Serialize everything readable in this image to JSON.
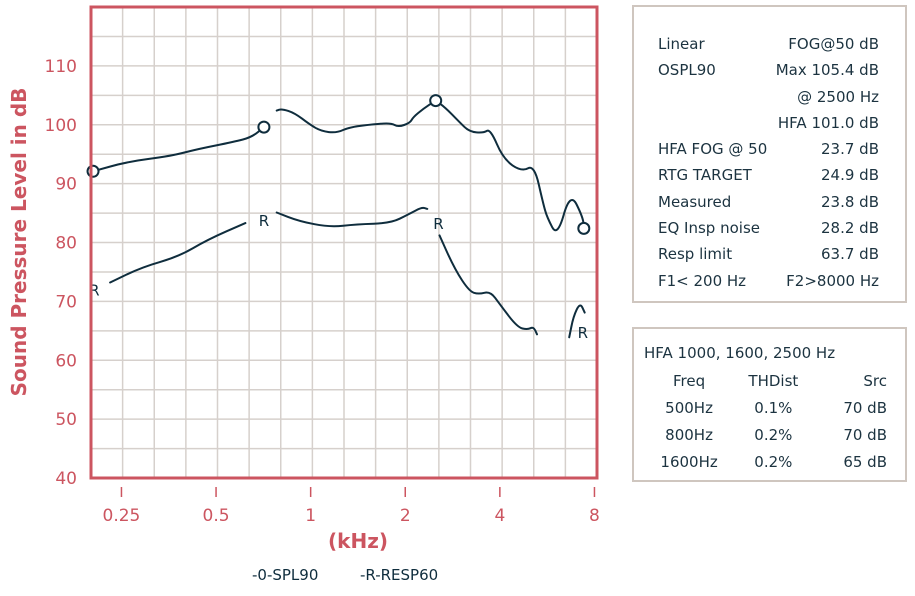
{
  "chart_data": {
    "type": "line",
    "title": "",
    "xlabel": "(kHz)",
    "ylabel": "Sound Pressure Level in dB",
    "x_scale": "log",
    "xlim": [
      0.2,
      8.1
    ],
    "ylim": [
      40,
      120
    ],
    "x_ticks": [
      {
        "value": 0.25,
        "label": "0.25"
      },
      {
        "value": 0.5,
        "label": "0.5"
      },
      {
        "value": 1,
        "label": "1"
      },
      {
        "value": 2,
        "label": "2"
      },
      {
        "value": 4,
        "label": "4"
      },
      {
        "value": 8,
        "label": "8"
      }
    ],
    "y_ticks": [
      40,
      50,
      60,
      70,
      80,
      90,
      100,
      110
    ],
    "grid": true,
    "legend_position": "bottom",
    "series": [
      {
        "name": "SPL90",
        "legend_label": "-0-SPL90",
        "marker": "O",
        "segments": [
          [
            [
              0.203,
              92.1
            ],
            [
              0.26,
              93.7
            ],
            [
              0.36,
              94.7
            ],
            [
              0.44,
              95.9
            ],
            [
              0.57,
              97.1
            ],
            [
              0.65,
              97.9
            ],
            [
              0.71,
              99.6
            ]
          ],
          [
            [
              0.78,
              102.4
            ],
            [
              0.81,
              102.7
            ],
            [
              0.89,
              102.0
            ],
            [
              0.99,
              100.1
            ],
            [
              1.08,
              98.9
            ],
            [
              1.21,
              98.6
            ],
            [
              1.33,
              99.6
            ],
            [
              1.6,
              100.1
            ],
            [
              1.8,
              100.3
            ],
            [
              1.9,
              99.6
            ],
            [
              2.07,
              100.3
            ],
            [
              2.12,
              101.3
            ],
            [
              2.28,
              102.7
            ],
            [
              2.5,
              104.1
            ],
            [
              2.67,
              103.0
            ],
            [
              2.97,
              100.5
            ],
            [
              3.2,
              98.8
            ],
            [
              3.55,
              98.6
            ],
            [
              3.73,
              99.3
            ],
            [
              4.1,
              94.2
            ],
            [
              4.7,
              92.0
            ],
            [
              5.15,
              93.2
            ],
            [
              5.5,
              86.5
            ],
            [
              5.65,
              84.3
            ],
            [
              6.1,
              80.9
            ],
            [
              6.7,
              88.6
            ],
            [
              7.35,
              84.3
            ],
            [
              7.4,
              82.4
            ]
          ]
        ],
        "marker_points": [
          [
            0.203,
            92.1
          ],
          [
            0.71,
            99.6
          ],
          [
            2.5,
            104.1
          ],
          [
            7.4,
            82.4
          ]
        ]
      },
      {
        "name": "RESP60",
        "legend_label": "-R-RESP60",
        "marker": "R",
        "segments": [
          [
            [
              0.23,
              73.2
            ],
            [
              0.29,
              75.8
            ],
            [
              0.38,
              77.6
            ],
            [
              0.47,
              80.5
            ],
            [
              0.62,
              83.3
            ]
          ],
          [
            [
              0.78,
              85.1
            ],
            [
              0.92,
              83.6
            ],
            [
              1.15,
              82.6
            ],
            [
              1.4,
              83.1
            ],
            [
              1.8,
              83.3
            ],
            [
              2.05,
              84.8
            ],
            [
              2.26,
              86.0
            ],
            [
              2.35,
              85.7
            ]
          ],
          [
            [
              2.57,
              81.2
            ],
            [
              2.88,
              75.4
            ],
            [
              3.2,
              71.7
            ],
            [
              3.42,
              71.2
            ],
            [
              3.73,
              71.7
            ],
            [
              4.0,
              69.5
            ],
            [
              4.55,
              65.6
            ],
            [
              4.9,
              65.2
            ],
            [
              5.12,
              65.7
            ],
            [
              5.25,
              64.4
            ]
          ],
          [
            [
              6.65,
              63.9
            ],
            [
              6.85,
              67.4
            ],
            [
              7.2,
              69.8
            ],
            [
              7.45,
              68.1
            ]
          ]
        ],
        "marker_points": [
          [
            0.205,
            72.0
          ],
          [
            0.71,
            83.8
          ],
          [
            2.55,
            83.3
          ],
          [
            7.35,
            64.8
          ]
        ]
      }
    ]
  },
  "axis": {
    "ylabel": "Sound Pressure Level in dB",
    "xlabel": "(kHz)",
    "y_tick_labels": [
      "40",
      "50",
      "60",
      "70",
      "80",
      "90",
      "100",
      "110"
    ],
    "x_tick_labels": [
      "0.25",
      "0.5",
      "1",
      "2",
      "4",
      "8"
    ]
  },
  "legend": {
    "spl90": "-0-SPL90",
    "resp60": "-R-RESP60"
  },
  "info_box": {
    "rows": [
      {
        "left": "Linear",
        "right": "FOG@50 dB"
      },
      {
        "left": "OSPL90",
        "right": "Max 105.4 dB"
      },
      {
        "left": "",
        "right": "@ 2500 Hz"
      },
      {
        "left": "",
        "right": "HFA 101.0 dB"
      },
      {
        "left": "HFA FOG @ 50",
        "right": "23.7 dB"
      },
      {
        "left": "RTG TARGET",
        "right": "24.9 dB"
      },
      {
        "left": "Measured",
        "right": "23.8 dB"
      },
      {
        "left": "EQ Insp noise",
        "right": "28.2 dB"
      },
      {
        "left": "Resp limit",
        "right": "63.7 dB"
      },
      {
        "left": "F1< 200 Hz",
        "right": "F2>8000 Hz"
      }
    ]
  },
  "distortion_box": {
    "title": "HFA 1000, 1600, 2500 Hz",
    "headers": [
      "Freq",
      "THDist",
      "Src"
    ],
    "rows": [
      [
        "500Hz",
        "0.1%",
        "70 dB"
      ],
      [
        "800Hz",
        "0.2%",
        "70 dB"
      ],
      [
        "1600Hz",
        "0.2%",
        "65 dB"
      ]
    ]
  },
  "colors": {
    "axis": "#cc5560",
    "grid": "#d6d0cc",
    "curve": "#0f2d3d",
    "box_border": "#cfc6bf"
  }
}
